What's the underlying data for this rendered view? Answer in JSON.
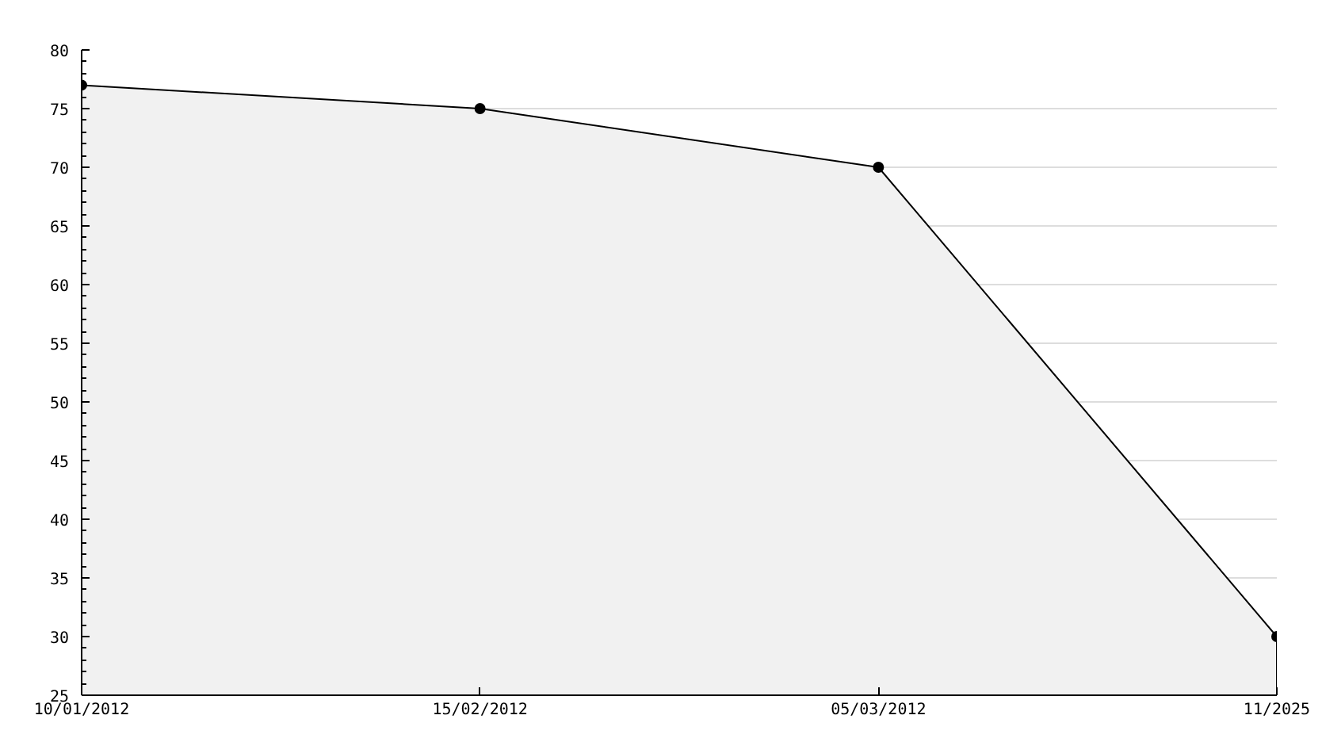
{
  "chart_data": {
    "type": "area",
    "categories": [
      "10/01/2012",
      "15/02/2012",
      "05/03/2012",
      "11/2025"
    ],
    "series": [
      {
        "color": "#f1f1f1",
        "values": [
          77,
          75,
          70,
          30
        ]
      }
    ],
    "ylim": [
      25,
      80
    ],
    "yticks": [
      25,
      30,
      35,
      40,
      45,
      50,
      55,
      60,
      65,
      70,
      75,
      80
    ],
    "grid": "y",
    "marker": "circle"
  }
}
